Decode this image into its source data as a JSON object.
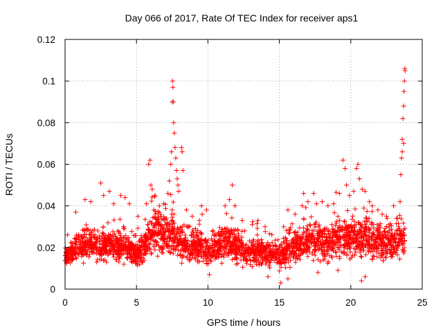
{
  "chart_data": {
    "type": "scatter",
    "title": "Day 066 of 2017, Rate Of TEC Index for receiver aps1",
    "xlabel": "GPS time / hours",
    "ylabel": "ROTI / TECUs",
    "xlim": [
      0,
      25
    ],
    "ylim": [
      0,
      0.12
    ],
    "x_ticks": [
      "0",
      "5",
      "10",
      "15",
      "20",
      "25"
    ],
    "y_ticks": [
      "0",
      "0.02",
      "0.04",
      "0.06",
      "0.08",
      "0.1",
      "0.12"
    ],
    "grid": true,
    "marker": "plus",
    "color": "#ff0000",
    "series": [
      {
        "baseline_profile": {
          "x": [
            0,
            0.5,
            1,
            1.5,
            2,
            2.5,
            3,
            3.5,
            4,
            4.5,
            5,
            5.5,
            6,
            6.5,
            7,
            7.5,
            8,
            8.5,
            9,
            9.5,
            10,
            10.5,
            11,
            11.5,
            12,
            12.5,
            13,
            13.5,
            14,
            14.5,
            15,
            15.5,
            16,
            16.5,
            17,
            17.5,
            18,
            18.5,
            19,
            19.5,
            20,
            20.5,
            21,
            21.5,
            22,
            22.5,
            23,
            23.5,
            23.8
          ],
          "y": [
            0.016,
            0.018,
            0.02,
            0.022,
            0.021,
            0.02,
            0.022,
            0.021,
            0.02,
            0.019,
            0.017,
            0.02,
            0.025,
            0.028,
            0.025,
            0.027,
            0.022,
            0.02,
            0.021,
            0.02,
            0.018,
            0.02,
            0.022,
            0.022,
            0.02,
            0.018,
            0.017,
            0.018,
            0.018,
            0.017,
            0.016,
            0.018,
            0.021,
            0.022,
            0.024,
            0.023,
            0.022,
            0.022,
            0.024,
            0.024,
            0.024,
            0.025,
            0.025,
            0.022,
            0.023,
            0.022,
            0.021,
            0.024,
            0.022
          ],
          "spread": [
            0.008,
            0.008,
            0.009,
            0.01,
            0.009,
            0.009,
            0.009,
            0.009,
            0.009,
            0.008,
            0.008,
            0.009,
            0.012,
            0.013,
            0.012,
            0.013,
            0.009,
            0.008,
            0.009,
            0.009,
            0.008,
            0.009,
            0.01,
            0.01,
            0.009,
            0.008,
            0.008,
            0.008,
            0.008,
            0.008,
            0.008,
            0.009,
            0.01,
            0.011,
            0.012,
            0.011,
            0.011,
            0.011,
            0.012,
            0.012,
            0.012,
            0.012,
            0.012,
            0.011,
            0.011,
            0.011,
            0.01,
            0.011,
            0.011
          ]
        },
        "points": [
          [
            0.75,
            0.037
          ],
          [
            1.4,
            0.043
          ],
          [
            1.8,
            0.042
          ],
          [
            2.5,
            0.051
          ],
          [
            2.7,
            0.045
          ],
          [
            3.1,
            0.047
          ],
          [
            3.4,
            0.041
          ],
          [
            3.9,
            0.045
          ],
          [
            4.2,
            0.044
          ],
          [
            4.5,
            0.041
          ],
          [
            5.1,
            0.035
          ],
          [
            5.7,
            0.041
          ],
          [
            5.85,
            0.06
          ],
          [
            5.95,
            0.062
          ],
          [
            6.0,
            0.05
          ],
          [
            6.1,
            0.048
          ],
          [
            6.3,
            0.045
          ],
          [
            6.6,
            0.04
          ],
          [
            6.9,
            0.041
          ],
          [
            7.2,
            0.046
          ],
          [
            7.3,
            0.052
          ],
          [
            7.4,
            0.06
          ],
          [
            7.45,
            0.066
          ],
          [
            7.5,
            0.09
          ],
          [
            7.52,
            0.1
          ],
          [
            7.55,
            0.097
          ],
          [
            7.58,
            0.09
          ],
          [
            7.6,
            0.08
          ],
          [
            7.65,
            0.075
          ],
          [
            7.7,
            0.068
          ],
          [
            7.75,
            0.063
          ],
          [
            7.8,
            0.057
          ],
          [
            7.85,
            0.053
          ],
          [
            7.9,
            0.05
          ],
          [
            7.95,
            0.047
          ],
          [
            8.15,
            0.068
          ],
          [
            8.2,
            0.066
          ],
          [
            8.25,
            0.057
          ],
          [
            8.5,
            0.038
          ],
          [
            8.9,
            0.035
          ],
          [
            9.4,
            0.033
          ],
          [
            9.6,
            0.036
          ],
          [
            9.9,
            0.038
          ],
          [
            9.55,
            0.04
          ],
          [
            11.2,
            0.04
          ],
          [
            11.5,
            0.043
          ],
          [
            11.7,
            0.05
          ],
          [
            11.9,
            0.04
          ],
          [
            12.4,
            0.033
          ],
          [
            13.1,
            0.031
          ],
          [
            13.5,
            0.033
          ],
          [
            14.0,
            0.03
          ],
          [
            15.1,
            0.003
          ],
          [
            15.6,
            0.005
          ],
          [
            15.3,
            0.03
          ],
          [
            15.6,
            0.038
          ],
          [
            16.1,
            0.036
          ],
          [
            16.6,
            0.04
          ],
          [
            16.7,
            0.046
          ],
          [
            17.0,
            0.042
          ],
          [
            17.4,
            0.046
          ],
          [
            17.6,
            0.041
          ],
          [
            18.0,
            0.042
          ],
          [
            18.4,
            0.04
          ],
          [
            18.8,
            0.041
          ],
          [
            19.2,
            0.046
          ],
          [
            19.45,
            0.062
          ],
          [
            19.6,
            0.058
          ],
          [
            19.7,
            0.05
          ],
          [
            19.9,
            0.045
          ],
          [
            20.2,
            0.047
          ],
          [
            20.4,
            0.058
          ],
          [
            20.5,
            0.06
          ],
          [
            20.6,
            0.053
          ],
          [
            20.8,
            0.048
          ],
          [
            21.0,
            0.047
          ],
          [
            21.3,
            0.042
          ],
          [
            21.5,
            0.04
          ],
          [
            21.9,
            0.038
          ],
          [
            22.2,
            0.036
          ],
          [
            22.5,
            0.035
          ],
          [
            23.0,
            0.04
          ],
          [
            23.2,
            0.034
          ],
          [
            23.35,
            0.03
          ],
          [
            23.45,
            0.042
          ],
          [
            23.5,
            0.055
          ],
          [
            23.55,
            0.063
          ],
          [
            23.6,
            0.072
          ],
          [
            23.65,
            0.082
          ],
          [
            23.7,
            0.088
          ],
          [
            23.72,
            0.095
          ],
          [
            23.75,
            0.1
          ],
          [
            23.78,
            0.106
          ],
          [
            23.8,
            0.105
          ],
          [
            23.7,
            0.07
          ],
          [
            23.6,
            0.066
          ],
          [
            20.75,
            0.004
          ],
          [
            21.0,
            0.006
          ],
          [
            17.7,
            0.008
          ],
          [
            19.1,
            0.009
          ],
          [
            14.2,
            0.006
          ],
          [
            10.1,
            0.007
          ]
        ]
      }
    ]
  }
}
